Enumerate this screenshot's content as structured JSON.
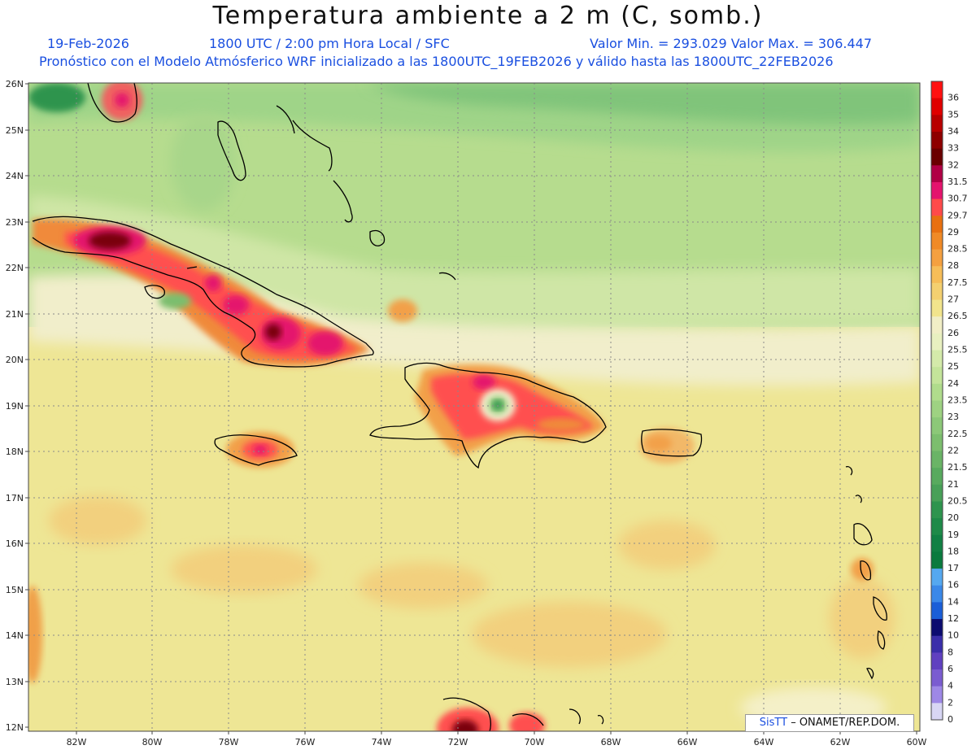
{
  "header": {
    "title": "Temperatura ambiente a 2 m (C, somb.)",
    "date": "19-Feb-2026",
    "time": "1800 UTC / 2:00 pm Hora Local / SFC",
    "minmax": "Valor Min. = 293.029  Valor Max. = 306.447",
    "model_line": "Pronóstico con el Modelo Atmósferico WRF inicializado a las 1800UTC_19FEB2026 y válido hasta las  1800UTC_22FEB2026"
  },
  "map": {
    "lat_labels": [
      "26N",
      "25N",
      "24N",
      "23N",
      "22N",
      "21N",
      "20N",
      "19N",
      "18N",
      "17N",
      "16N",
      "15N",
      "14N",
      "13N",
      "12N"
    ],
    "lon_labels": [
      "82W",
      "80W",
      "78W",
      "76W",
      "74W",
      "72W",
      "70W",
      "68W",
      "66W",
      "64W",
      "62W",
      "60W"
    ]
  },
  "colorbar": {
    "labels": [
      "36",
      "35",
      "34",
      "33",
      "32",
      "31.5",
      "30.7",
      "29.7",
      "29",
      "28.5",
      "28",
      "27.5",
      "27",
      "26.5",
      "26",
      "25.5",
      "25",
      "24",
      "23.5",
      "23",
      "22.5",
      "22",
      "21.5",
      "21",
      "20.5",
      "20",
      "19",
      "18",
      "17",
      "16",
      "14",
      "12",
      "10",
      "8",
      "6",
      "4",
      "2",
      "0"
    ],
    "colors": [
      "#ff1010",
      "#e00000",
      "#b80000",
      "#8e0000",
      "#6a0000",
      "#b00045",
      "#e4136d",
      "#ff4a4a",
      "#e87010",
      "#f08a26",
      "#f4a040",
      "#f6bd58",
      "#f4d070",
      "#f2e48c",
      "#f1eec6",
      "#e8f0c0",
      "#d4eaaa",
      "#c4e49a",
      "#b0dc8c",
      "#9ed282",
      "#8cc878",
      "#7cbe6e",
      "#6ab466",
      "#58aa5e",
      "#48a058",
      "#2e944e",
      "#1e8a48",
      "#118044",
      "#0a7a3e",
      "#55a8f0",
      "#3a88e8",
      "#1a5ed8",
      "#0c0c70",
      "#3a2eaa",
      "#6040c0",
      "#7a5cd0",
      "#9e88e6",
      "#d8d6f4"
    ]
  },
  "credit": {
    "logo": "SisTT",
    "text": " – ONAMET/REP.DOM."
  },
  "colors": {
    "subtitle": "#1a4fe0",
    "frame": "#444444",
    "grid": "#8a8a8a"
  }
}
